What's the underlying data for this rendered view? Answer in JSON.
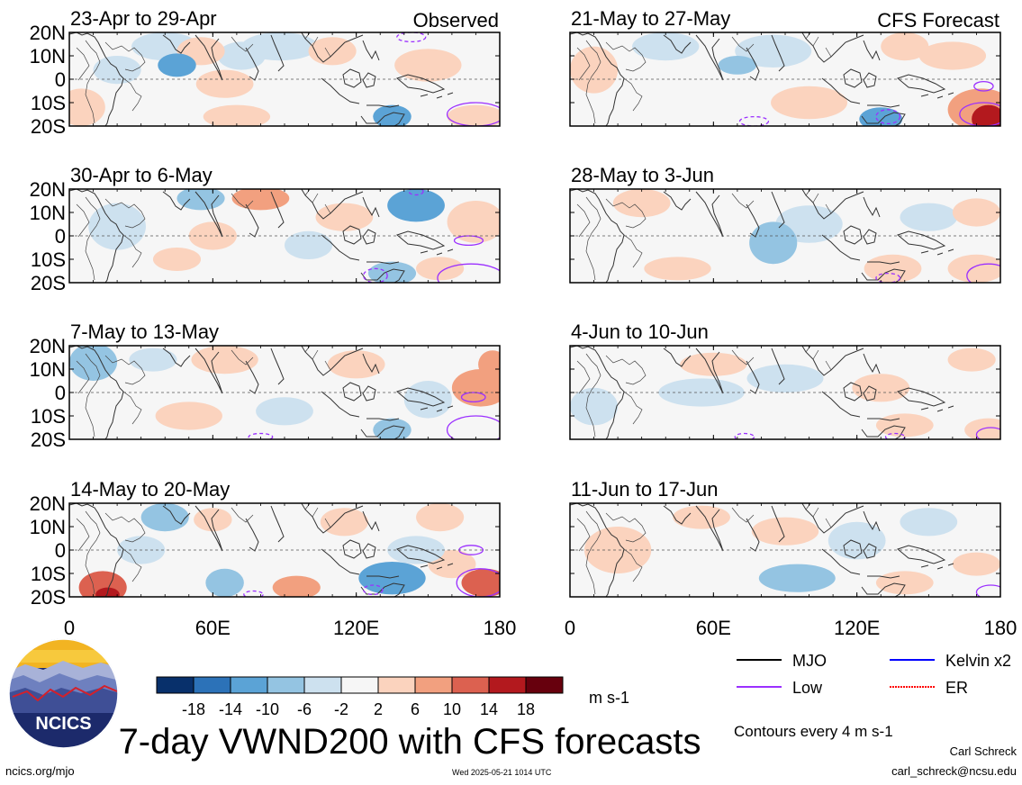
{
  "chart_data": {
    "type": "heatmap",
    "title": "7-day VWND200 with CFS forecasts",
    "variable": "VWND200",
    "units": "m s-1",
    "contour_note": "Contours every 4 m s-1",
    "x_ticks": [
      "0",
      "60E",
      "120E",
      "180"
    ],
    "x_tick_values": [
      0,
      60,
      120,
      180
    ],
    "y_ticks": [
      "20N",
      "10N",
      "0",
      "10S",
      "20S"
    ],
    "y_tick_values": [
      20,
      10,
      0,
      -10,
      -20
    ],
    "xlim": [
      0,
      180
    ],
    "ylim": [
      -20,
      20
    ],
    "color_scale": {
      "labels": [
        "-18",
        "-14",
        "-10",
        "-6",
        "-2",
        "2",
        "6",
        "10",
        "14",
        "18"
      ],
      "colors": [
        "#08306b",
        "#2c72b8",
        "#5ba3d6",
        "#94c4e2",
        "#cde1ef",
        "#f6f6f6",
        "#fbd3be",
        "#f2a07f",
        "#dc6150",
        "#b3191e",
        "#67000d"
      ]
    },
    "legend": [
      {
        "name": "MJO",
        "color": "#000000"
      },
      {
        "name": "Kelvin x2",
        "color": "#0000ff"
      },
      {
        "name": "Low",
        "color": "#9b30ff"
      },
      {
        "name": "ER",
        "color": "#ff0000"
      }
    ],
    "panels": [
      {
        "label": "23-Apr to 29-Apr",
        "tag": "Observed",
        "blobs": [
          {
            "lon": 40,
            "lat": 14,
            "rx": 14,
            "ry": 6,
            "v": -5
          },
          {
            "lon": 45,
            "lat": 6,
            "rx": 8,
            "ry": 5,
            "v": -11
          },
          {
            "lon": 55,
            "lat": 12,
            "rx": 10,
            "ry": 6,
            "v": 5
          },
          {
            "lon": 65,
            "lat": -2,
            "rx": 12,
            "ry": 6,
            "v": 3
          },
          {
            "lon": 72,
            "lat": 10,
            "rx": 10,
            "ry": 6,
            "v": -4
          },
          {
            "lon": 88,
            "lat": 14,
            "rx": 16,
            "ry": 6,
            "v": -4
          },
          {
            "lon": 110,
            "lat": 12,
            "rx": 10,
            "ry": 6,
            "v": 4
          },
          {
            "lon": 135,
            "lat": -16,
            "rx": 8,
            "ry": 5,
            "v": -12
          },
          {
            "lon": 150,
            "lat": 6,
            "rx": 14,
            "ry": 7,
            "v": 5
          },
          {
            "lon": 5,
            "lat": -12,
            "rx": 10,
            "ry": 8,
            "v": 4
          },
          {
            "lon": 70,
            "lat": -16,
            "rx": 14,
            "ry": 5,
            "v": 3
          },
          {
            "lon": 170,
            "lat": -16,
            "rx": 12,
            "ry": 5,
            "v": 3
          },
          {
            "lon": 20,
            "lat": 4,
            "rx": 10,
            "ry": 6,
            "v": -3
          }
        ],
        "contours": [
          {
            "lon": 143,
            "lat": 18,
            "rx": 6,
            "ry": 2,
            "dash": true
          },
          {
            "lon": 170,
            "lat": -15,
            "rx": 12,
            "ry": 5,
            "dash": false
          }
        ]
      },
      {
        "label": "21-May to 27-May",
        "tag": "CFS Forecast",
        "blobs": [
          {
            "lon": 70,
            "lat": 6,
            "rx": 8,
            "ry": 4,
            "v": -6
          },
          {
            "lon": 85,
            "lat": 12,
            "rx": 16,
            "ry": 7,
            "v": -3
          },
          {
            "lon": 10,
            "lat": 4,
            "rx": 10,
            "ry": 10,
            "v": 3
          },
          {
            "lon": 100,
            "lat": -10,
            "rx": 16,
            "ry": 7,
            "v": 4
          },
          {
            "lon": 130,
            "lat": -17,
            "rx": 9,
            "ry": 5,
            "v": -12
          },
          {
            "lon": 172,
            "lat": -13,
            "rx": 14,
            "ry": 9,
            "v": 9
          },
          {
            "lon": 175,
            "lat": -17,
            "rx": 7,
            "ry": 6,
            "v": 17
          },
          {
            "lon": 160,
            "lat": 10,
            "rx": 14,
            "ry": 6,
            "v": 3
          },
          {
            "lon": 40,
            "lat": 14,
            "rx": 14,
            "ry": 6,
            "v": -3
          },
          {
            "lon": 140,
            "lat": 14,
            "rx": 10,
            "ry": 6,
            "v": 3
          }
        ],
        "contours": [
          {
            "lon": 173,
            "lat": -3,
            "rx": 4,
            "ry": 2,
            "dash": false
          },
          {
            "lon": 173,
            "lat": -15,
            "rx": 10,
            "ry": 5,
            "dash": false
          },
          {
            "lon": 77,
            "lat": -18,
            "rx": 6,
            "ry": 2,
            "dash": true
          },
          {
            "lon": 133,
            "lat": -16,
            "rx": 5,
            "ry": 3,
            "dash": true
          }
        ]
      },
      {
        "label": "30-Apr to 6-May",
        "tag": "",
        "blobs": [
          {
            "lon": 55,
            "lat": 16,
            "rx": 10,
            "ry": 5,
            "v": -7
          },
          {
            "lon": 80,
            "lat": 16,
            "rx": 12,
            "ry": 5,
            "v": 7
          },
          {
            "lon": 145,
            "lat": 13,
            "rx": 12,
            "ry": 7,
            "v": -10
          },
          {
            "lon": 170,
            "lat": 6,
            "rx": 12,
            "ry": 9,
            "v": 6
          },
          {
            "lon": 20,
            "lat": 4,
            "rx": 12,
            "ry": 10,
            "v": -4
          },
          {
            "lon": 60,
            "lat": 0,
            "rx": 10,
            "ry": 6,
            "v": 3
          },
          {
            "lon": 115,
            "lat": 8,
            "rx": 12,
            "ry": 6,
            "v": 3
          },
          {
            "lon": 135,
            "lat": -16,
            "rx": 10,
            "ry": 5,
            "v": -7
          },
          {
            "lon": 100,
            "lat": -4,
            "rx": 10,
            "ry": 6,
            "v": -3
          },
          {
            "lon": 155,
            "lat": -14,
            "rx": 10,
            "ry": 5,
            "v": 4
          },
          {
            "lon": 45,
            "lat": -10,
            "rx": 10,
            "ry": 5,
            "v": 3
          }
        ],
        "contours": [
          {
            "lon": 167,
            "lat": -2,
            "rx": 6,
            "ry": 2,
            "dash": false
          },
          {
            "lon": 168,
            "lat": -18,
            "rx": 14,
            "ry": 6,
            "dash": false
          },
          {
            "lon": 128,
            "lat": -17,
            "rx": 5,
            "ry": 3,
            "dash": true
          },
          {
            "lon": 145,
            "lat": 19,
            "rx": 3,
            "ry": 1.5,
            "dash": true
          }
        ]
      },
      {
        "label": "28-May to 3-Jun",
        "tag": "",
        "blobs": [
          {
            "lon": 85,
            "lat": -3,
            "rx": 10,
            "ry": 9,
            "v": -7
          },
          {
            "lon": 100,
            "lat": 5,
            "rx": 14,
            "ry": 8,
            "v": -3
          },
          {
            "lon": 30,
            "lat": 14,
            "rx": 12,
            "ry": 6,
            "v": 3
          },
          {
            "lon": 135,
            "lat": -14,
            "rx": 12,
            "ry": 6,
            "v": 4
          },
          {
            "lon": 150,
            "lat": 8,
            "rx": 12,
            "ry": 6,
            "v": -3
          },
          {
            "lon": 170,
            "lat": 10,
            "rx": 10,
            "ry": 6,
            "v": 3
          },
          {
            "lon": 170,
            "lat": -14,
            "rx": 12,
            "ry": 6,
            "v": 3
          },
          {
            "lon": 45,
            "lat": -14,
            "rx": 14,
            "ry": 5,
            "v": 3
          }
        ],
        "contours": [
          {
            "lon": 175,
            "lat": -17,
            "rx": 9,
            "ry": 5,
            "dash": false
          },
          {
            "lon": 133,
            "lat": -18,
            "rx": 5,
            "ry": 2,
            "dash": true
          }
        ]
      },
      {
        "label": "7-May to 13-May",
        "tag": "",
        "blobs": [
          {
            "lon": 10,
            "lat": 13,
            "rx": 10,
            "ry": 8,
            "v": -7
          },
          {
            "lon": 65,
            "lat": 14,
            "rx": 14,
            "ry": 6,
            "v": 4
          },
          {
            "lon": 90,
            "lat": -8,
            "rx": 12,
            "ry": 6,
            "v": -4
          },
          {
            "lon": 120,
            "lat": 12,
            "rx": 12,
            "ry": 6,
            "v": 4
          },
          {
            "lon": 150,
            "lat": -3,
            "rx": 10,
            "ry": 8,
            "v": -3
          },
          {
            "lon": 172,
            "lat": 2,
            "rx": 12,
            "ry": 8,
            "v": 7
          },
          {
            "lon": 177,
            "lat": 12,
            "rx": 6,
            "ry": 6,
            "v": 9
          },
          {
            "lon": 135,
            "lat": -16,
            "rx": 8,
            "ry": 5,
            "v": -9
          },
          {
            "lon": 50,
            "lat": -10,
            "rx": 14,
            "ry": 6,
            "v": 3
          },
          {
            "lon": 35,
            "lat": 14,
            "rx": 10,
            "ry": 5,
            "v": -3
          }
        ],
        "contours": [
          {
            "lon": 169,
            "lat": -2,
            "rx": 5,
            "ry": 2,
            "dash": false
          },
          {
            "lon": 170,
            "lat": -16,
            "rx": 12,
            "ry": 6,
            "dash": false
          },
          {
            "lon": 80,
            "lat": -19,
            "rx": 5,
            "ry": 1.5,
            "dash": true
          }
        ]
      },
      {
        "label": "4-Jun to 10-Jun",
        "tag": "",
        "blobs": [
          {
            "lon": 55,
            "lat": 0,
            "rx": 18,
            "ry": 6,
            "v": -3
          },
          {
            "lon": 90,
            "lat": 6,
            "rx": 16,
            "ry": 6,
            "v": -3
          },
          {
            "lon": 130,
            "lat": 2,
            "rx": 12,
            "ry": 6,
            "v": 3
          },
          {
            "lon": 60,
            "lat": 12,
            "rx": 14,
            "ry": 5,
            "v": 3
          },
          {
            "lon": 10,
            "lat": -6,
            "rx": 10,
            "ry": 8,
            "v": -3
          },
          {
            "lon": 140,
            "lat": -14,
            "rx": 12,
            "ry": 5,
            "v": 3
          },
          {
            "lon": 175,
            "lat": -16,
            "rx": 10,
            "ry": 5,
            "v": 5
          },
          {
            "lon": 168,
            "lat": 14,
            "rx": 10,
            "ry": 5,
            "v": 3
          }
        ],
        "contours": [
          {
            "lon": 176,
            "lat": -18,
            "rx": 6,
            "ry": 3,
            "dash": false
          },
          {
            "lon": 73,
            "lat": -19,
            "rx": 4,
            "ry": 1.5,
            "dash": true
          },
          {
            "lon": 136,
            "lat": -19,
            "rx": 4,
            "ry": 1.5,
            "dash": true
          }
        ]
      },
      {
        "label": "14-May to 20-May",
        "tag": "",
        "blobs": [
          {
            "lon": 14,
            "lat": -16,
            "rx": 10,
            "ry": 7,
            "v": 12
          },
          {
            "lon": 16,
            "lat": -19,
            "rx": 5,
            "ry": 3,
            "v": 16
          },
          {
            "lon": 40,
            "lat": 14,
            "rx": 10,
            "ry": 6,
            "v": -9
          },
          {
            "lon": 60,
            "lat": 13,
            "rx": 8,
            "ry": 5,
            "v": 5
          },
          {
            "lon": 65,
            "lat": -14,
            "rx": 8,
            "ry": 6,
            "v": -9
          },
          {
            "lon": 95,
            "lat": -16,
            "rx": 10,
            "ry": 5,
            "v": 7
          },
          {
            "lon": 115,
            "lat": 12,
            "rx": 10,
            "ry": 6,
            "v": 4
          },
          {
            "lon": 135,
            "lat": -12,
            "rx": 14,
            "ry": 7,
            "v": -10
          },
          {
            "lon": 145,
            "lat": 0,
            "rx": 12,
            "ry": 6,
            "v": -4
          },
          {
            "lon": 155,
            "lat": 14,
            "rx": 10,
            "ry": 6,
            "v": 6
          },
          {
            "lon": 174,
            "lat": -14,
            "rx": 10,
            "ry": 6,
            "v": 11
          },
          {
            "lon": 160,
            "lat": -6,
            "rx": 10,
            "ry": 6,
            "v": 3
          },
          {
            "lon": 30,
            "lat": 0,
            "rx": 10,
            "ry": 6,
            "v": -3
          }
        ],
        "contours": [
          {
            "lon": 168,
            "lat": 0,
            "rx": 5,
            "ry": 2,
            "dash": false
          },
          {
            "lon": 172,
            "lat": -14,
            "rx": 10,
            "ry": 6,
            "dash": false
          },
          {
            "lon": 77,
            "lat": -19,
            "rx": 4,
            "ry": 1.5,
            "dash": true
          },
          {
            "lon": 127,
            "lat": -17,
            "rx": 4,
            "ry": 2,
            "dash": true
          }
        ]
      },
      {
        "label": "11-Jun to 17-Jun",
        "tag": "",
        "blobs": [
          {
            "lon": 95,
            "lat": -12,
            "rx": 16,
            "ry": 6,
            "v": -7
          },
          {
            "lon": 90,
            "lat": 8,
            "rx": 14,
            "ry": 6,
            "v": 3
          },
          {
            "lon": 120,
            "lat": 4,
            "rx": 12,
            "ry": 8,
            "v": -3
          },
          {
            "lon": 150,
            "lat": 12,
            "rx": 12,
            "ry": 6,
            "v": -3
          },
          {
            "lon": 20,
            "lat": 0,
            "rx": 14,
            "ry": 10,
            "v": 3
          },
          {
            "lon": 55,
            "lat": 14,
            "rx": 12,
            "ry": 5,
            "v": 3
          },
          {
            "lon": 140,
            "lat": -14,
            "rx": 12,
            "ry": 5,
            "v": 3
          },
          {
            "lon": 170,
            "lat": -6,
            "rx": 10,
            "ry": 5,
            "v": 3
          }
        ],
        "contours": [
          {
            "lon": 176,
            "lat": -18,
            "rx": 6,
            "ry": 3,
            "dash": false
          }
        ]
      }
    ]
  },
  "logo": {
    "text": "NCICS"
  },
  "footer": {
    "site": "ncics.org/mjo",
    "timestamp": "Wed 2025-05-21 1014 UTC",
    "author": "Carl Schreck",
    "email": "carl_schreck@ncsu.edu"
  }
}
